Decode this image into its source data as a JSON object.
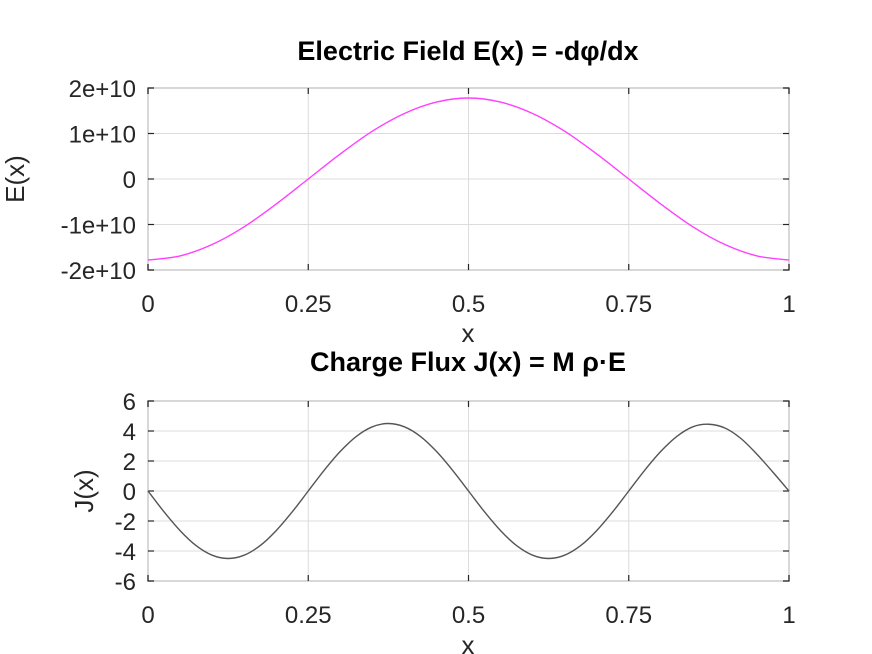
{
  "chart_data": [
    {
      "type": "line",
      "title": "Electric Field E(x) = -dφ/dx",
      "xlabel": "x",
      "ylabel": "E(x)",
      "xlim": [
        0,
        1
      ],
      "ylim": [
        -20000000000,
        20000000000
      ],
      "xticks": [
        0,
        0.25,
        0.5,
        0.75,
        1
      ],
      "xtick_labels": [
        "0",
        "0.25",
        "0.5",
        "0.75",
        "1"
      ],
      "yticks": [
        -20000000000,
        -10000000000,
        0,
        10000000000,
        20000000000
      ],
      "ytick_labels": [
        "-2e+10",
        "-1e+10",
        "0",
        "1e+10",
        "2e+10"
      ],
      "grid": true,
      "series": [
        {
          "color": "#ff40ff",
          "x": [
            0,
            0.05,
            0.1,
            0.15,
            0.2,
            0.25,
            0.3,
            0.35,
            0.4,
            0.45,
            0.5,
            0.55,
            0.6,
            0.65,
            0.7,
            0.75,
            0.8,
            0.85,
            0.9,
            0.95,
            1
          ],
          "y": [
            -17800000000,
            -16900000000,
            -14400000000,
            -10500000000,
            -5500000000,
            0,
            5500000000,
            10500000000,
            14400000000,
            16900000000,
            17800000000,
            16900000000,
            14400000000,
            10500000000,
            5500000000,
            0,
            -5500000000,
            -10500000000,
            -14400000000,
            -16900000000,
            -17800000000
          ]
        }
      ]
    },
    {
      "type": "line",
      "title": "Charge Flux J(x) =  M ρ·E",
      "xlabel": "x",
      "ylabel": "J(x)",
      "xlim": [
        0,
        1
      ],
      "ylim": [
        -6,
        6
      ],
      "xticks": [
        0,
        0.25,
        0.5,
        0.75,
        1
      ],
      "xtick_labels": [
        "0",
        "0.25",
        "0.5",
        "0.75",
        "1"
      ],
      "yticks": [
        -6,
        -4,
        -2,
        0,
        2,
        4,
        6
      ],
      "ytick_labels": [
        "-6",
        "-4",
        "-2",
        "0",
        "2",
        "4",
        "6"
      ],
      "grid": true,
      "series": [
        {
          "color": "#555555",
          "x": [
            0,
            0.025,
            0.05,
            0.075,
            0.1,
            0.125,
            0.15,
            0.175,
            0.2,
            0.225,
            0.25,
            0.275,
            0.3,
            0.325,
            0.35,
            0.375,
            0.4,
            0.425,
            0.45,
            0.475,
            0.5,
            0.525,
            0.55,
            0.575,
            0.6,
            0.625,
            0.65,
            0.675,
            0.7,
            0.725,
            0.75,
            0.775,
            0.8,
            0.825,
            0.85,
            0.875,
            0.9,
            0.925,
            0.95,
            0.975,
            1
          ],
          "y": [
            0,
            -1.39,
            -2.64,
            -3.64,
            -4.28,
            -4.5,
            -4.28,
            -3.64,
            -2.64,
            -1.39,
            0,
            1.39,
            2.64,
            3.64,
            4.28,
            4.5,
            4.28,
            3.64,
            2.64,
            1.39,
            0,
            -1.39,
            -2.64,
            -3.64,
            -4.28,
            -4.5,
            -4.28,
            -3.64,
            -2.64,
            -1.39,
            0,
            1.39,
            2.64,
            3.64,
            4.28,
            4.45,
            4.2,
            3.5,
            2.45,
            1.25,
            0
          ]
        }
      ]
    }
  ]
}
